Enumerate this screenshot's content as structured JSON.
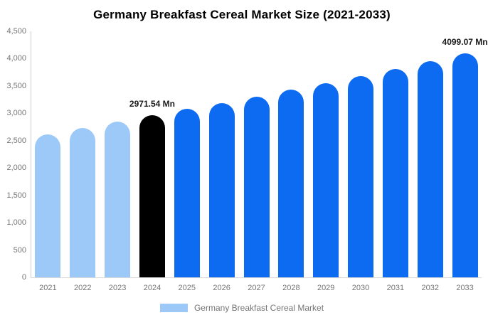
{
  "chart_data": {
    "type": "bar",
    "title": "Germany Breakfast Cereal Market Size (2021-2033)",
    "legend": "Germany Breakfast Cereal Market",
    "unit": "Mn",
    "categories": [
      "2021",
      "2022",
      "2023",
      "2024",
      "2025",
      "2026",
      "2027",
      "2028",
      "2029",
      "2030",
      "2031",
      "2032",
      "2033"
    ],
    "values": [
      2620,
      2736,
      2853,
      2971.54,
      3080,
      3192,
      3308,
      3428,
      3553,
      3682,
      3816,
      3955,
      4099.07
    ],
    "point_color_roles": [
      "past",
      "past",
      "past",
      "current",
      "forecast",
      "forecast",
      "forecast",
      "forecast",
      "forecast",
      "forecast",
      "forecast",
      "forecast",
      "forecast"
    ],
    "colors": {
      "past": "#9DC9F9",
      "current": "#000000",
      "forecast": "#0D6BF2",
      "axis_text": "#757575",
      "axis_line": "#cccccc"
    },
    "data_labels": {
      "2024": "2971.54 Mn",
      "2033": "4099.07 Mn"
    },
    "ylim": [
      0,
      4500
    ],
    "ytick_step": 500,
    "grid": false,
    "legend_position": "bottom"
  }
}
